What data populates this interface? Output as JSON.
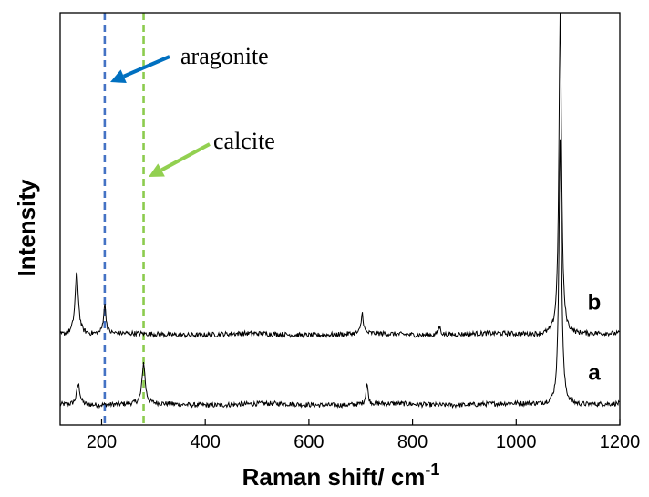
{
  "chart_data": {
    "type": "line",
    "xlabel": "Raman shift/ cm",
    "xlabel_sup": "-1",
    "ylabel": "Intensity",
    "xlim": [
      120,
      1200
    ],
    "ylim": [
      0,
      1
    ],
    "x_ticks": [
      200,
      400,
      600,
      800,
      1000,
      1200
    ],
    "y_ticks_labeled": false,
    "grid": false,
    "legend": "none",
    "series": [
      {
        "name": "a",
        "color": "#000000",
        "baseline": 0.05,
        "peaks": [
          {
            "x": 155,
            "height": 0.05,
            "width": 4
          },
          {
            "x": 281,
            "height": 0.1,
            "width": 3.5
          },
          {
            "x": 712,
            "height": 0.05,
            "width": 2.5
          },
          {
            "x": 1085,
            "height": 0.65,
            "width": 3
          }
        ]
      },
      {
        "name": "b",
        "color": "#000000",
        "baseline": 0.22,
        "peaks": [
          {
            "x": 152,
            "height": 0.15,
            "width": 4
          },
          {
            "x": 206,
            "height": 0.07,
            "width": 3
          },
          {
            "x": 703,
            "height": 0.05,
            "width": 2.5
          },
          {
            "x": 852,
            "height": 0.02,
            "width": 3
          },
          {
            "x": 1085,
            "height": 0.78,
            "width": 3
          }
        ]
      }
    ],
    "reference_lines": [
      {
        "label": "aragonite",
        "x": 206,
        "color": "#4472C4",
        "arrow_color": "#0070C0"
      },
      {
        "label": "calcite",
        "x": 281,
        "color": "#8CCB4E",
        "arrow_color": "#92D050"
      }
    ]
  }
}
